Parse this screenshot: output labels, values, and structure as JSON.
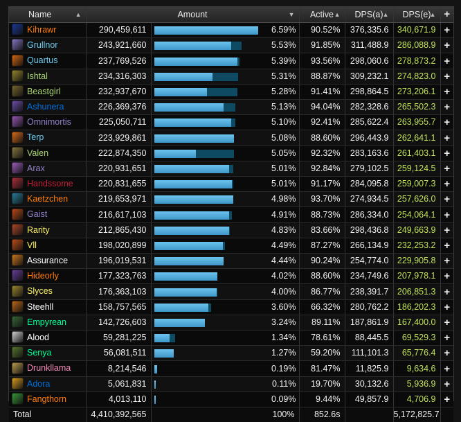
{
  "header": {
    "name": "Name",
    "amount": "Amount",
    "active": "Active",
    "dps_a": "DPS(a)",
    "dps_e": "DPS(e)",
    "add": "+"
  },
  "rows": [
    {
      "name": "Kihrawr",
      "color": "#ff7d0a",
      "icon": "#1a3a9a",
      "amount": "290,459,611",
      "bar": 1.0,
      "track": 1.0,
      "pct": "6.59%",
      "active": "90.52%",
      "dpsa": "376,335.6",
      "dpse": "340,671.9"
    },
    {
      "name": "Grullnor",
      "color": "#69ccf0",
      "icon": "#8a7ac8",
      "amount": "243,921,660",
      "bar": 0.74,
      "track": 0.84,
      "pct": "5.53%",
      "active": "91.85%",
      "dpsa": "311,488.9",
      "dpse": "286,088.9"
    },
    {
      "name": "Quartus",
      "color": "#69ccf0",
      "icon": "#d86a14",
      "amount": "237,769,526",
      "bar": 0.8,
      "track": 0.82,
      "pct": "5.39%",
      "active": "93.56%",
      "dpsa": "298,060.6",
      "dpse": "278,873.2"
    },
    {
      "name": "Ishtal",
      "color": "#abd473",
      "icon": "#9a8a30",
      "amount": "234,316,303",
      "bar": 0.56,
      "track": 0.81,
      "pct": "5.31%",
      "active": "88.87%",
      "dpsa": "309,232.1",
      "dpse": "274,823.0"
    },
    {
      "name": "Beastgirl",
      "color": "#abd473",
      "icon": "#7a6a30",
      "amount": "232,937,670",
      "bar": 0.51,
      "track": 0.8,
      "pct": "5.28%",
      "active": "91.41%",
      "dpsa": "298,864.5",
      "dpse": "273,206.1"
    },
    {
      "name": "Ashunera",
      "color": "#0070de",
      "icon": "#7050b0",
      "amount": "226,369,376",
      "bar": 0.67,
      "track": 0.78,
      "pct": "5.13%",
      "active": "94.04%",
      "dpsa": "282,328.6",
      "dpse": "265,502.3"
    },
    {
      "name": "Omnimortis",
      "color": "#9482c9",
      "icon": "#9a5ab8",
      "amount": "225,050,711",
      "bar": 0.74,
      "track": 0.78,
      "pct": "5.10%",
      "active": "92.41%",
      "dpsa": "285,622.4",
      "dpse": "263,955.7"
    },
    {
      "name": "Terp",
      "color": "#69ccf0",
      "icon": "#e0701a",
      "amount": "223,929,861",
      "bar": 0.77,
      "track": 0.77,
      "pct": "5.08%",
      "active": "88.60%",
      "dpsa": "296,443.9",
      "dpse": "262,641.1"
    },
    {
      "name": "Valen",
      "color": "#abd473",
      "icon": "#8a7a40",
      "amount": "222,874,350",
      "bar": 0.4,
      "track": 0.77,
      "pct": "5.05%",
      "active": "92.32%",
      "dpsa": "283,163.6",
      "dpse": "261,403.1"
    },
    {
      "name": "Arax",
      "color": "#9482c9",
      "icon": "#a060c0",
      "amount": "220,931,651",
      "bar": 0.72,
      "track": 0.76,
      "pct": "5.01%",
      "active": "92.84%",
      "dpsa": "279,102.5",
      "dpse": "259,124.5"
    },
    {
      "name": "Handssome",
      "color": "#c41f3b",
      "icon": "#b0303a",
      "amount": "220,831,655",
      "bar": 0.75,
      "track": 0.76,
      "pct": "5.01%",
      "active": "91.17%",
      "dpsa": "284,095.8",
      "dpse": "259,007.3"
    },
    {
      "name": "Kaetzchen",
      "color": "#ff7d0a",
      "icon": "#2a80a0",
      "amount": "219,653,971",
      "bar": 0.76,
      "track": 0.76,
      "pct": "4.98%",
      "active": "93.70%",
      "dpsa": "274,934.5",
      "dpse": "257,626.0"
    },
    {
      "name": "Gaist",
      "color": "#9482c9",
      "icon": "#c04a1a",
      "amount": "216,617,103",
      "bar": 0.72,
      "track": 0.75,
      "pct": "4.91%",
      "active": "88.73%",
      "dpsa": "286,334.0",
      "dpse": "254,064.1"
    },
    {
      "name": "Rarity",
      "color": "#fff569",
      "icon": "#b04a2a",
      "amount": "212,865,430",
      "bar": 0.72,
      "track": 0.73,
      "pct": "4.83%",
      "active": "83.66%",
      "dpsa": "298,436.8",
      "dpse": "249,663.9"
    },
    {
      "name": "Vll",
      "color": "#fff569",
      "icon": "#c0501a",
      "amount": "198,020,899",
      "bar": 0.66,
      "track": 0.68,
      "pct": "4.49%",
      "active": "87.27%",
      "dpsa": "266,134.9",
      "dpse": "232,253.2"
    },
    {
      "name": "Assurance",
      "color": "#ffffff",
      "icon": "#d07a20",
      "amount": "196,019,531",
      "bar": 0.67,
      "track": 0.67,
      "pct": "4.44%",
      "active": "90.24%",
      "dpsa": "254,774.0",
      "dpse": "229,905.8"
    },
    {
      "name": "Hideorly",
      "color": "#ff7d0a",
      "icon": "#6a40a0",
      "amount": "177,323,763",
      "bar": 0.61,
      "track": 0.61,
      "pct": "4.02%",
      "active": "88.60%",
      "dpsa": "234,749.6",
      "dpse": "207,978.1"
    },
    {
      "name": "Slyces",
      "color": "#fff569",
      "icon": "#a08a30",
      "amount": "176,363,103",
      "bar": 0.6,
      "track": 0.61,
      "pct": "4.00%",
      "active": "86.77%",
      "dpsa": "238,391.7",
      "dpse": "206,851.3"
    },
    {
      "name": "Steehll",
      "color": "#ffffff",
      "icon": "#c06a18",
      "amount": "158,757,565",
      "bar": 0.52,
      "track": 0.55,
      "pct": "3.60%",
      "active": "66.32%",
      "dpsa": "280,762.2",
      "dpse": "186,202.3"
    },
    {
      "name": "Empyrean",
      "color": "#00ff96",
      "icon": "#3a6a3a",
      "amount": "142,726,603",
      "bar": 0.49,
      "track": 0.49,
      "pct": "3.24%",
      "active": "89.11%",
      "dpsa": "187,861.9",
      "dpse": "167,400.0"
    },
    {
      "name": "Alood",
      "color": "#ffffff",
      "icon": "#d8d8d8",
      "amount": "59,281,225",
      "bar": 0.15,
      "track": 0.2,
      "pct": "1.34%",
      "active": "78.61%",
      "dpsa": "88,445.5",
      "dpse": "69,529.3"
    },
    {
      "name": "Senya",
      "color": "#00ff96",
      "icon": "#5a7a30",
      "amount": "56,081,511",
      "bar": 0.19,
      "track": 0.19,
      "pct": "1.27%",
      "active": "59.20%",
      "dpsa": "111,101.3",
      "dpse": "65,776.4"
    },
    {
      "name": "Drunkllama",
      "color": "#f58cba",
      "icon": "#c0a050",
      "amount": "8,214,546",
      "bar": 0.03,
      "track": 0.03,
      "pct": "0.19%",
      "active": "81.47%",
      "dpsa": "11,825.9",
      "dpse": "9,634.6"
    },
    {
      "name": "Adora",
      "color": "#0070de",
      "icon": "#e0a020",
      "amount": "5,061,831",
      "bar": 0.015,
      "track": 0.015,
      "pct": "0.11%",
      "active": "19.70%",
      "dpsa": "30,132.6",
      "dpse": "5,936.9"
    },
    {
      "name": "Fangthorn",
      "color": "#ff7d0a",
      "icon": "#3a9a3a",
      "amount": "4,013,110",
      "bar": 0.012,
      "track": 0.012,
      "pct": "0.09%",
      "active": "9.44%",
      "dpsa": "49,857.9",
      "dpse": "4,706.9"
    }
  ],
  "footer": {
    "label": "Total",
    "amount": "4,410,392,565",
    "pct": "100%",
    "active": "852.6s",
    "dps_a": "",
    "dps_e": "5,172,825.7"
  },
  "icons": {
    "sort": "sort-updown-icon",
    "sort_desc": "sort-descending-icon",
    "add": "plus-icon"
  }
}
